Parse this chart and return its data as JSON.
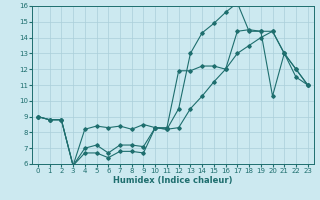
{
  "title": "",
  "xlabel": "Humidex (Indice chaleur)",
  "bg_color": "#cce9f0",
  "grid_color": "#aacfda",
  "line_color": "#1e6e6e",
  "xlim": [
    -0.5,
    23.5
  ],
  "ylim": [
    6,
    16
  ],
  "xticks": [
    0,
    1,
    2,
    3,
    4,
    5,
    6,
    7,
    8,
    9,
    10,
    11,
    12,
    13,
    14,
    15,
    16,
    17,
    18,
    19,
    20,
    21,
    22,
    23
  ],
  "yticks": [
    6,
    7,
    8,
    9,
    10,
    11,
    12,
    13,
    14,
    15,
    16
  ],
  "line1_x": [
    0,
    1,
    2,
    3,
    4,
    5,
    6,
    7,
    8,
    9,
    10,
    11,
    12,
    13,
    14,
    15,
    16,
    17,
    18,
    19,
    20,
    21,
    22,
    23
  ],
  "line1_y": [
    9.0,
    8.8,
    8.8,
    5.9,
    7.0,
    7.2,
    6.7,
    7.2,
    7.2,
    7.1,
    8.3,
    8.2,
    9.5,
    13.0,
    14.3,
    14.9,
    15.6,
    16.2,
    14.4,
    14.4,
    10.3,
    13.0,
    12.0,
    11.0
  ],
  "line2_x": [
    0,
    1,
    2,
    3,
    4,
    5,
    6,
    7,
    8,
    9,
    10,
    11,
    12,
    13,
    14,
    15,
    16,
    17,
    18,
    19,
    20,
    21,
    22,
    23
  ],
  "line2_y": [
    9.0,
    8.8,
    8.8,
    5.9,
    8.2,
    8.4,
    8.3,
    8.4,
    8.2,
    8.5,
    8.3,
    8.3,
    11.9,
    11.9,
    12.2,
    12.2,
    12.0,
    14.4,
    14.5,
    14.4,
    14.4,
    13.0,
    12.0,
    11.0
  ],
  "line3_x": [
    0,
    1,
    2,
    3,
    4,
    5,
    6,
    7,
    8,
    9,
    10,
    11,
    12,
    13,
    14,
    15,
    16,
    17,
    18,
    19,
    20,
    21,
    22,
    23
  ],
  "line3_y": [
    9.0,
    8.8,
    8.8,
    5.9,
    6.7,
    6.7,
    6.4,
    6.8,
    6.8,
    6.7,
    8.3,
    8.2,
    8.3,
    9.5,
    10.3,
    11.2,
    12.0,
    13.0,
    13.5,
    14.0,
    14.4,
    13.0,
    11.5,
    11.0
  ],
  "xlabel_fontsize": 6,
  "tick_fontsize": 5,
  "lw": 0.8,
  "ms": 1.8
}
